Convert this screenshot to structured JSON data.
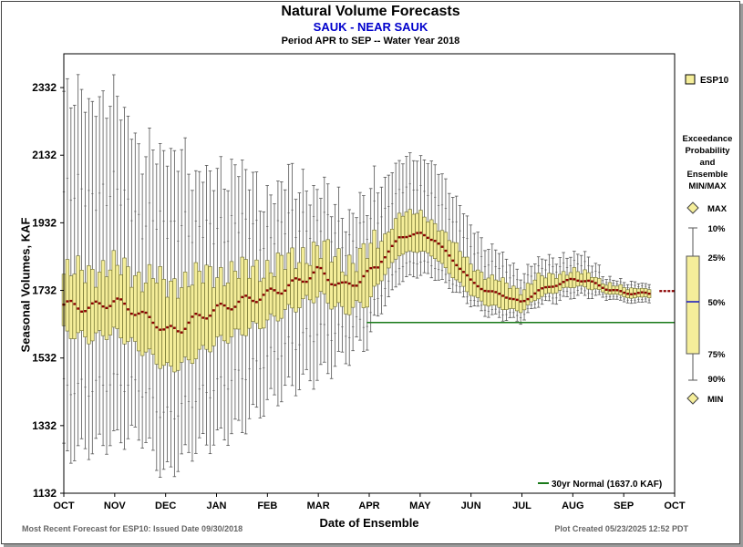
{
  "chart_data": {
    "type": "box",
    "title": "Natural Volume Forecasts",
    "subtitle": "SAUK - NEAR SAUK",
    "period": "Period   APR to SEP  --  Water Year 2018",
    "xlabel": "Date of Ensemble",
    "ylabel": "Seasonal Volumes, KAF",
    "ylim": [
      1132,
      2432
    ],
    "yticks": [
      1132,
      1332,
      1532,
      1732,
      1932,
      2132,
      2332
    ],
    "xticks": [
      "OCT",
      "NOV",
      "DEC",
      "JAN",
      "FEB",
      "MAR",
      "APR",
      "MAY",
      "JUN",
      "JUL",
      "AUG",
      "SEP",
      "OCT"
    ],
    "reference_line": {
      "label": "30yr Normal (1637.0 KAF)",
      "value": 1637.0
    },
    "legend": {
      "series": "ESP10",
      "placement": "right"
    },
    "anchors": [
      {
        "t": 0.0,
        "median": 1690,
        "p25": 1610,
        "p75": 1780,
        "min": 1245,
        "max": 2300
      },
      {
        "t": 0.5,
        "median": 1680,
        "p25": 1590,
        "p75": 1790,
        "min": 1265,
        "max": 2300
      },
      {
        "t": 1.0,
        "median": 1700,
        "p25": 1610,
        "p75": 1800,
        "min": 1290,
        "max": 2290
      },
      {
        "t": 1.3,
        "median": 1680,
        "p25": 1580,
        "p75": 1790,
        "min": 1300,
        "max": 2230
      },
      {
        "t": 1.5,
        "median": 1660,
        "p25": 1560,
        "p75": 1770,
        "min": 1310,
        "max": 2150
      },
      {
        "t": 1.8,
        "median": 1640,
        "p25": 1530,
        "p75": 1770,
        "min": 1230,
        "max": 2140
      },
      {
        "t": 2.0,
        "median": 1610,
        "p25": 1500,
        "p75": 1740,
        "min": 1185,
        "max": 2110
      },
      {
        "t": 2.3,
        "median": 1620,
        "p25": 1510,
        "p75": 1760,
        "min": 1230,
        "max": 2170
      },
      {
        "t": 2.6,
        "median": 1650,
        "p25": 1540,
        "p75": 1770,
        "min": 1270,
        "max": 2040
      },
      {
        "t": 3.0,
        "median": 1675,
        "p25": 1580,
        "p75": 1780,
        "min": 1290,
        "max": 2090
      },
      {
        "t": 3.5,
        "median": 1700,
        "p25": 1610,
        "p75": 1790,
        "min": 1330,
        "max": 2080
      },
      {
        "t": 4.0,
        "median": 1720,
        "p25": 1640,
        "p75": 1800,
        "min": 1400,
        "max": 2010
      },
      {
        "t": 4.5,
        "median": 1750,
        "p25": 1680,
        "p75": 1820,
        "min": 1450,
        "max": 2060
      },
      {
        "t": 5.0,
        "median": 1790,
        "p25": 1720,
        "p75": 1860,
        "min": 1480,
        "max": 2030
      },
      {
        "t": 5.5,
        "median": 1740,
        "p25": 1670,
        "p75": 1810,
        "min": 1530,
        "max": 1960
      },
      {
        "t": 6.0,
        "median": 1780,
        "p25": 1700,
        "p75": 1850,
        "min": 1590,
        "max": 2000
      },
      {
        "t": 6.3,
        "median": 1830,
        "p25": 1780,
        "p75": 1890,
        "min": 1690,
        "max": 2060
      },
      {
        "t": 6.6,
        "median": 1890,
        "p25": 1840,
        "p75": 1960,
        "min": 1760,
        "max": 2120
      },
      {
        "t": 7.0,
        "median": 1900,
        "p25": 1850,
        "p75": 1960,
        "min": 1780,
        "max": 2120
      },
      {
        "t": 7.3,
        "median": 1880,
        "p25": 1830,
        "p75": 1930,
        "min": 1770,
        "max": 2110
      },
      {
        "t": 7.6,
        "median": 1830,
        "p25": 1780,
        "p75": 1880,
        "min": 1740,
        "max": 2020
      },
      {
        "t": 8.0,
        "median": 1760,
        "p25": 1720,
        "p75": 1810,
        "min": 1690,
        "max": 1930
      },
      {
        "t": 8.3,
        "median": 1730,
        "p25": 1690,
        "p75": 1770,
        "min": 1660,
        "max": 1860
      },
      {
        "t": 8.6,
        "median": 1720,
        "p25": 1680,
        "p75": 1760,
        "min": 1650,
        "max": 1840
      },
      {
        "t": 9.0,
        "median": 1695,
        "p25": 1670,
        "p75": 1730,
        "min": 1640,
        "max": 1780
      },
      {
        "t": 9.3,
        "median": 1730,
        "p25": 1710,
        "p75": 1770,
        "min": 1690,
        "max": 1820
      },
      {
        "t": 9.7,
        "median": 1750,
        "p25": 1730,
        "p75": 1780,
        "min": 1700,
        "max": 1830
      },
      {
        "t": 10.0,
        "median": 1765,
        "p25": 1745,
        "p75": 1790,
        "min": 1715,
        "max": 1840
      },
      {
        "t": 10.3,
        "median": 1760,
        "p25": 1740,
        "p75": 1780,
        "min": 1715,
        "max": 1830
      },
      {
        "t": 10.7,
        "median": 1735,
        "p25": 1725,
        "p75": 1750,
        "min": 1710,
        "max": 1770
      },
      {
        "t": 11.0,
        "median": 1725,
        "p25": 1718,
        "p75": 1735,
        "min": 1708,
        "max": 1750
      },
      {
        "t": 11.5,
        "median": 1722,
        "p25": 1716,
        "p75": 1728,
        "min": 1708,
        "max": 1740
      }
    ],
    "final_value": 1730
  },
  "legend": {
    "esp10": "ESP10",
    "exceedance_title": "Exceedance Probability and Ensemble MIN/MAX",
    "max": "MAX",
    "p10": "10%",
    "p25": "25%",
    "p50": "50%",
    "p75": "75%",
    "p90": "90%",
    "min": "MIN",
    "normal": "30yr Normal (1637.0 KAF)"
  },
  "footer": {
    "left": "Most Recent Forecast for ESP10: Issued Date 09/30/2018",
    "right": "Plot Created 05/23/2025 12:52 PDT"
  },
  "colors": {
    "box_fill": "#f5ee9a",
    "box_stroke": "#6b6b2a",
    "whisker": "#555555",
    "median": "#8b0000",
    "normal_line": "#1a7a1a",
    "legend_median": "#2020c0"
  }
}
